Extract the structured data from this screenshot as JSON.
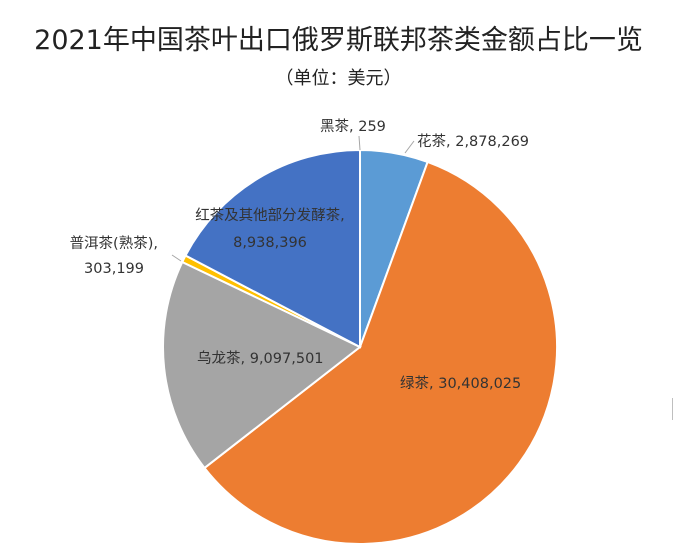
{
  "chart_data": {
    "type": "pie",
    "title": "2021年中国茶叶出口俄罗斯联邦茶类金额占比一览",
    "subtitle": "（单位：美元）",
    "slices": [
      {
        "label": "黑茶",
        "value": 259,
        "value_text": "259",
        "color": "#5b9bd5"
      },
      {
        "label": "花茶",
        "value": 2878269,
        "value_text": "2,878,269",
        "color": "#5b9bd5"
      },
      {
        "label": "绿茶",
        "value": 30408025,
        "value_text": "30,408,025",
        "color": "#ed7d31"
      },
      {
        "label": "乌龙茶",
        "value": 9097501,
        "value_text": "9,097,501",
        "color": "#a5a5a5"
      },
      {
        "label": "普洱茶(熟茶)",
        "value": 303199,
        "value_text": "303,199",
        "color": "#ffc000"
      },
      {
        "label": "红茶及其他部分发酵茶",
        "value": 8938396,
        "value_text": "8,938,396",
        "color": "#4472c4"
      }
    ]
  }
}
